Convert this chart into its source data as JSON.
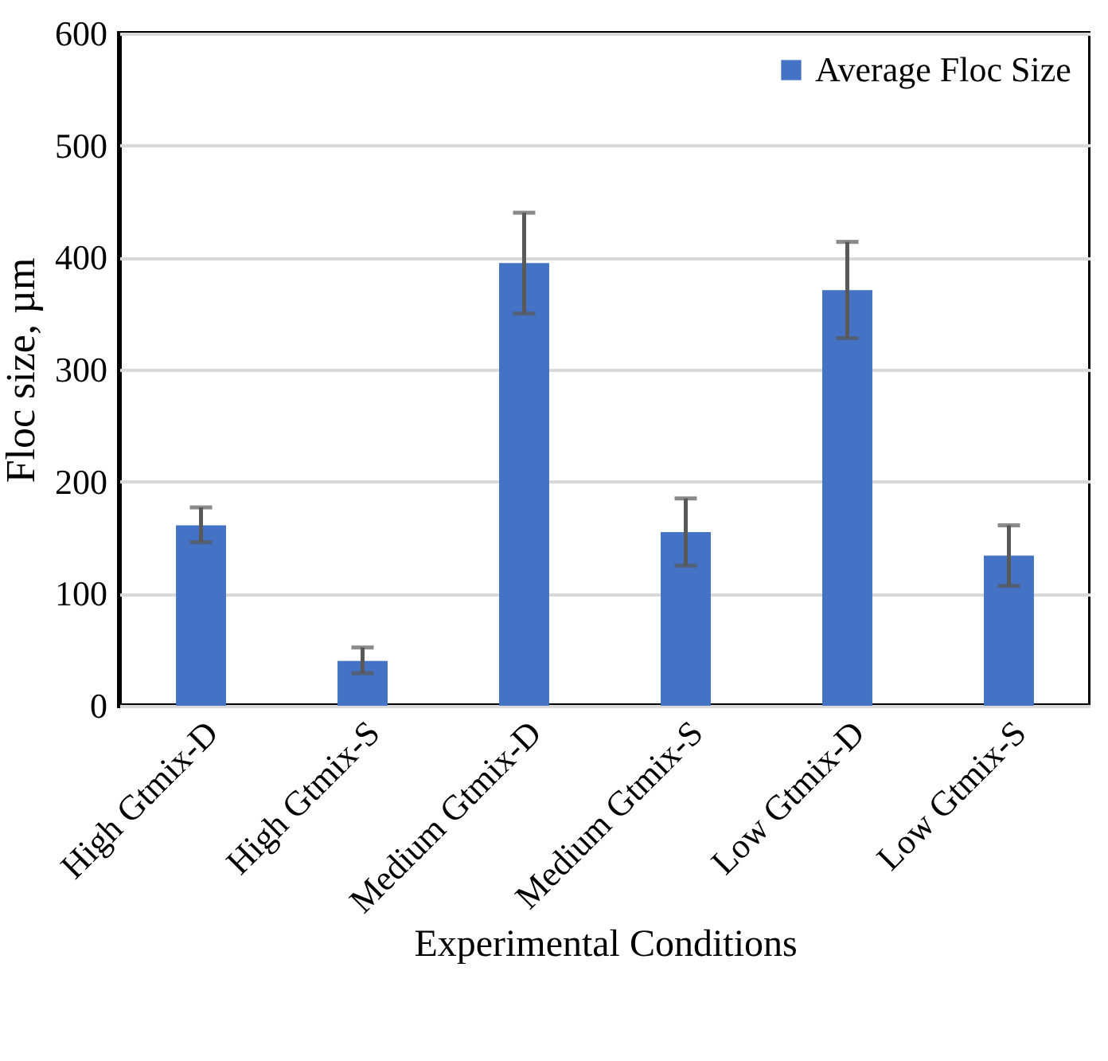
{
  "chart_data": {
    "type": "bar",
    "xlabel": "Experimental Conditions",
    "ylabel": "Floc size, µm",
    "categories": [
      "High Gtmix-D",
      "High Gtmix-S",
      "Medium Gtmix-D",
      "Medium Gtmix-S",
      "Low Gtmix-D",
      "Low Gtmix-S"
    ],
    "series": [
      {
        "name": "Average Floc Size",
        "color": "#4472c4",
        "values": [
          161,
          40,
          395,
          155,
          371,
          134
        ],
        "errors": [
          [
            146,
            177
          ],
          [
            29,
            52
          ],
          [
            350,
            440
          ],
          [
            125,
            185
          ],
          [
            328,
            414
          ],
          [
            107,
            161
          ]
        ]
      }
    ],
    "ylim": [
      0,
      600
    ],
    "yticks": [
      0,
      100,
      200,
      300,
      400,
      500,
      600
    ],
    "grid": "y",
    "legend": "top right"
  }
}
